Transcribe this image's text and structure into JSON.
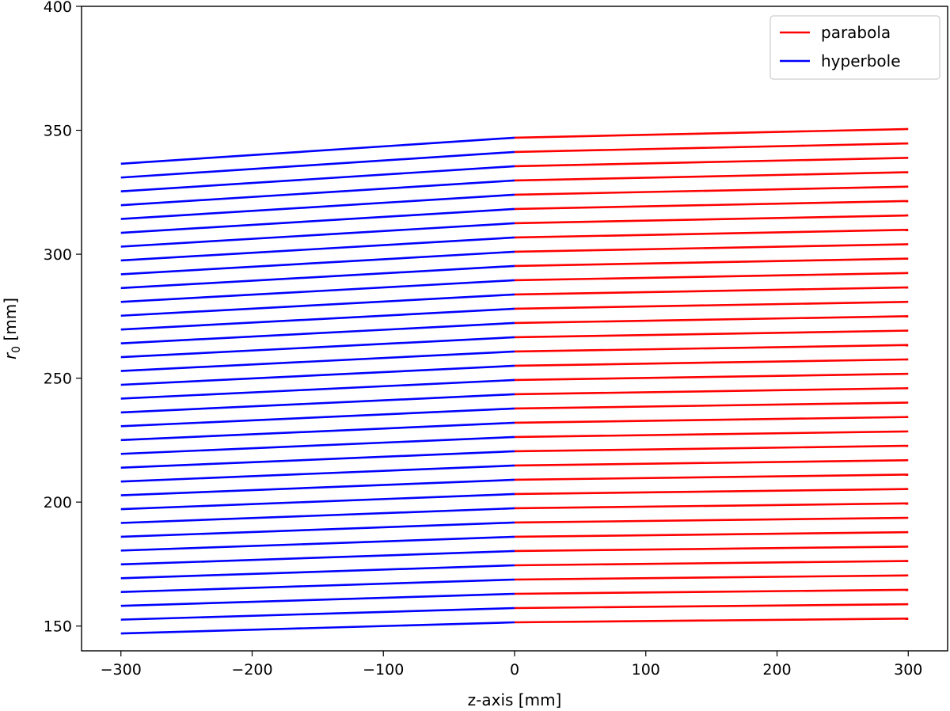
{
  "chart_data": {
    "type": "line",
    "title": "",
    "xlabel": "z-axis [mm]",
    "ylabel_symbol": "r",
    "ylabel_subscript": "0",
    "ylabel_unit": " [mm]",
    "xlim": [
      -330,
      330
    ],
    "ylim": [
      140,
      400
    ],
    "xticks": [
      -300,
      -200,
      -100,
      0,
      100,
      200,
      300
    ],
    "xtick_labels": [
      "−300",
      "−200",
      "−100",
      "0",
      "100",
      "200",
      "300"
    ],
    "yticks": [
      150,
      200,
      250,
      300,
      350,
      400
    ],
    "ytick_labels": [
      "150",
      "200",
      "250",
      "300",
      "350",
      "400"
    ],
    "grid": false,
    "legend_position": "top-right",
    "series": [
      {
        "name": "parabola",
        "color": "#ff0000",
        "x_range": [
          0,
          300
        ],
        "shell_count": 35,
        "r_at_0": {
          "first": 151.5,
          "last": 347.0
        },
        "r_at_300": {
          "first": 153.0,
          "last": 350.5
        }
      },
      {
        "name": "hyperbole",
        "color": "#0000ff",
        "x_range": [
          -300,
          0
        ],
        "shell_count": 35,
        "r_at_0": {
          "first": 151.5,
          "last": 347.0
        },
        "r_at_minus300": {
          "first": 147.0,
          "last": 336.5
        }
      }
    ]
  }
}
